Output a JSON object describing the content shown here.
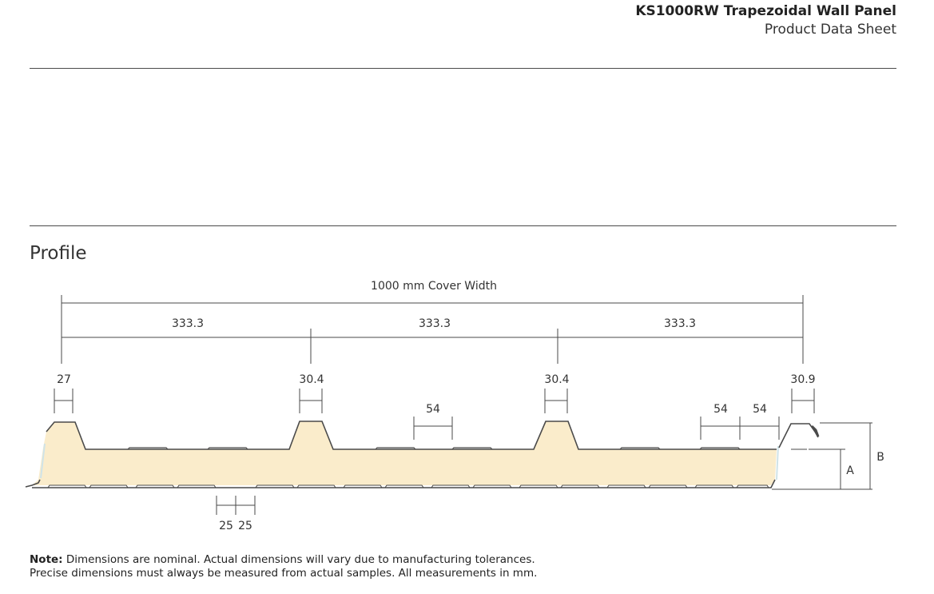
{
  "header": {
    "title": "KS1000RW Trapezoidal Wall Panel",
    "subtitle": "Product Data Sheet"
  },
  "section": {
    "title": "Profile"
  },
  "drawing": {
    "cover_width_label": "1000 mm Cover Width",
    "pitch_labels": [
      "333.3",
      "333.3",
      "333.3"
    ],
    "crown_labels": [
      "27",
      "30.4",
      "30.4",
      "30.9"
    ],
    "pan_labels": [
      "54",
      "54",
      "54"
    ],
    "liner_labels": [
      "25",
      "25"
    ],
    "height_labels": [
      "A",
      "B"
    ],
    "colors": {
      "core": "#faeccb",
      "line": "#4a4a4a",
      "edge": "#cfe3e8"
    }
  },
  "note": {
    "label": "Note:",
    "line1": " Dimensions are nominal. Actual dimensions will vary due to manufacturing tolerances.",
    "line2": "Precise dimensions must always be measured from actual samples. All measurements in mm."
  }
}
